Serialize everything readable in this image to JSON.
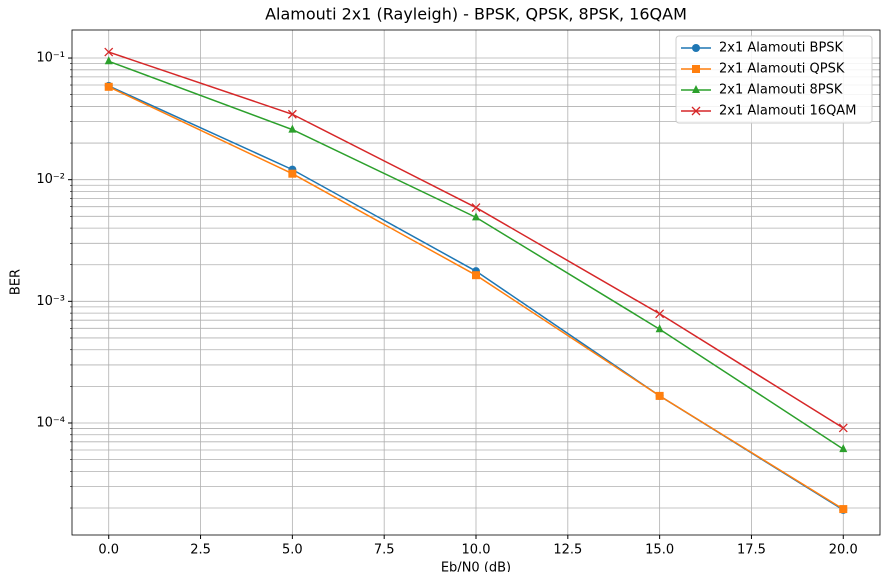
{
  "chart_data": {
    "type": "line",
    "title": "Alamouti 2x1 (Rayleigh) - BPSK, QPSK, 8PSK, 16QAM",
    "x_label": "Eb/N0 (dB)",
    "y_label": "BER",
    "x": [
      0,
      5,
      10,
      15,
      20
    ],
    "series": [
      {
        "name": "2x1 Alamouti BPSK",
        "color": "#1f77b4",
        "marker": "circle",
        "values": [
          0.059,
          0.0121,
          0.00177,
          0.000167,
          1.93e-05
        ]
      },
      {
        "name": "2x1 Alamouti QPSK",
        "color": "#ff7f0e",
        "marker": "square",
        "values": [
          0.058,
          0.0112,
          0.00164,
          0.000167,
          1.96e-05
        ]
      },
      {
        "name": "2x1 Alamouti 8PSK",
        "color": "#2ca02c",
        "marker": "triangle",
        "values": [
          0.094,
          0.0258,
          0.0049,
          0.00059,
          6.1e-05
        ]
      },
      {
        "name": "2x1 Alamouti 16QAM",
        "color": "#d62728",
        "marker": "x",
        "values": [
          0.112,
          0.0345,
          0.0059,
          0.00079,
          9.1e-05
        ]
      }
    ],
    "xlim": [
      -1,
      21
    ],
    "xticks": [
      {
        "value": 0,
        "label": "0.0"
      },
      2.5,
      {
        "value": 5,
        "label": "5.0"
      },
      7.5,
      {
        "value": 10,
        "label": "10.0"
      },
      12.5,
      {
        "value": 15,
        "label": "15.0"
      },
      17.5,
      {
        "value": 20,
        "label": "20.0"
      }
    ],
    "ylim": [
      1.2e-05,
      0.17
    ],
    "yscale": "log",
    "yticks": [
      {
        "value": 0.0001,
        "label": "10⁻⁴"
      },
      {
        "value": 0.001,
        "label": "10⁻³"
      },
      {
        "value": 0.01,
        "label": "10⁻²"
      },
      {
        "value": 0.1,
        "label": "10⁻¹"
      }
    ],
    "yminorticks": [
      2e-05,
      3e-05,
      4e-05,
      5e-05,
      6e-05,
      7e-05,
      8e-05,
      9e-05,
      0.0002,
      0.0003,
      0.0004,
      0.0005,
      0.0006,
      0.0007,
      0.0008,
      0.0009,
      0.002,
      0.003,
      0.004,
      0.005,
      0.006,
      0.007,
      0.008,
      0.009,
      0.02,
      0.03,
      0.04,
      0.05,
      0.06,
      0.07,
      0.08,
      0.09
    ],
    "grid": true,
    "legend": "upper right"
  }
}
